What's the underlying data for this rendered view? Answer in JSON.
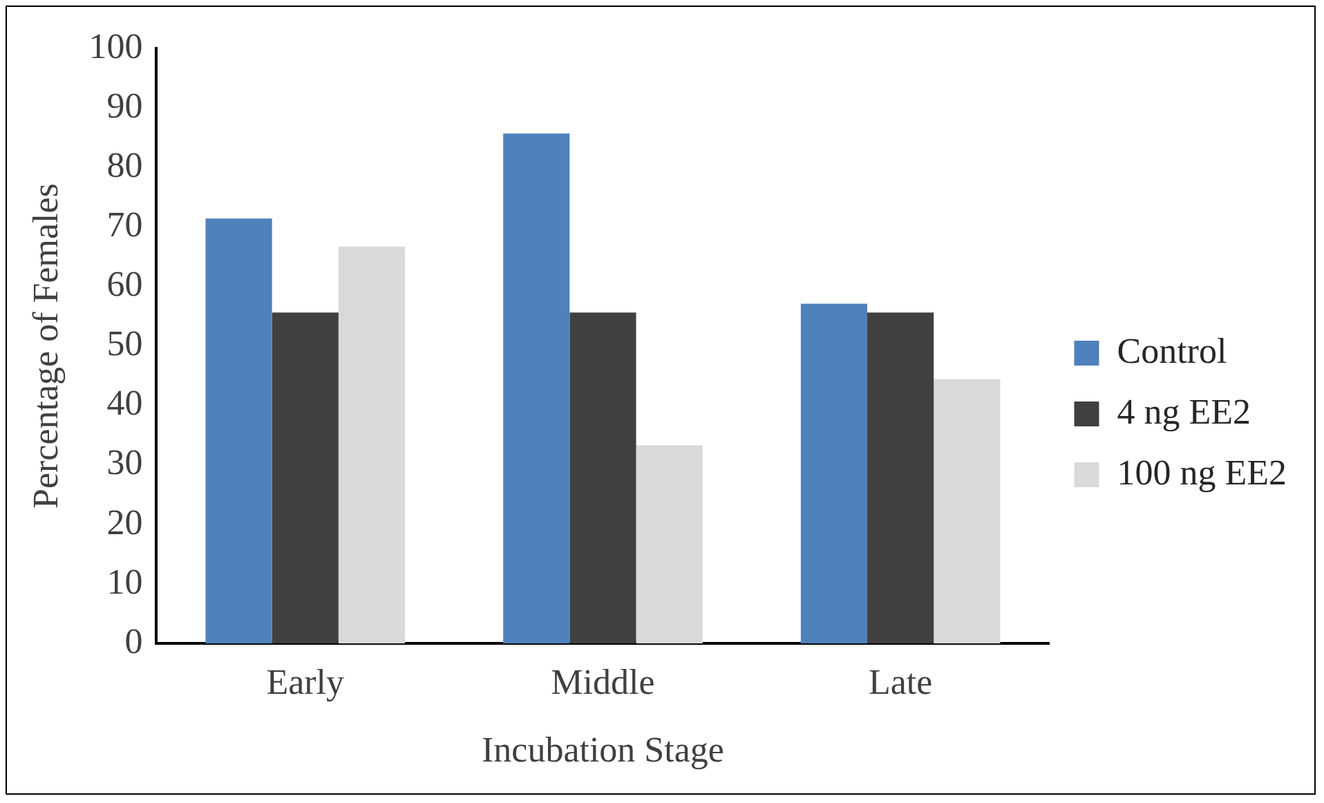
{
  "chart_data": {
    "type": "bar",
    "xlabel": "Incubation Stage",
    "ylabel": "Percentage of Females",
    "categories": [
      "Early",
      "Middle",
      "Late"
    ],
    "series": [
      {
        "name": "Control",
        "color": "#4f81bd",
        "values": [
          71.4,
          85.7,
          57.1
        ]
      },
      {
        "name": "4 ng EE2",
        "color": "#404040",
        "values": [
          55.6,
          55.6,
          55.6
        ]
      },
      {
        "name": "100 ng EE2",
        "color": "#d9d9d9",
        "values": [
          66.7,
          33.3,
          44.4
        ]
      }
    ],
    "ylim": [
      0,
      100
    ],
    "yticks": [
      0,
      10,
      20,
      30,
      40,
      50,
      60,
      70,
      80,
      90,
      100
    ],
    "grid": false,
    "legend": "right"
  }
}
